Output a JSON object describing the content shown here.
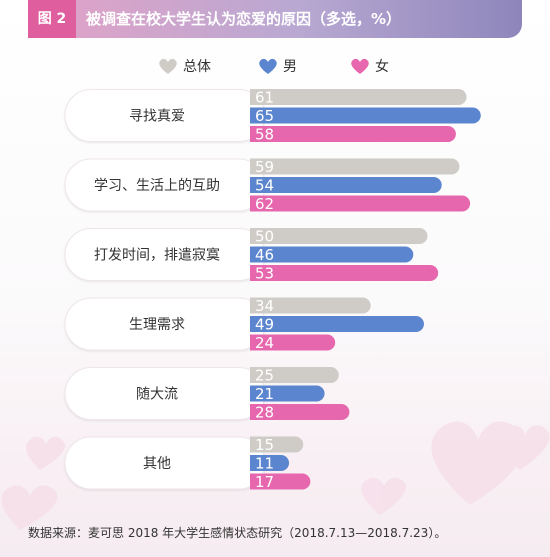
{
  "header": {
    "figure_label": "图 2",
    "title": "被调查在校大学生认为恋爱的原因（多选，%）"
  },
  "source_note": "数据来源：麦可思 2018 年大学生感情状态研究（2018.7.13—2018.7.23）。",
  "colors": {
    "total": "#cfccc7",
    "male": "#5b85ce",
    "female": "#e667ad"
  },
  "chart_data": {
    "type": "bar",
    "orientation": "horizontal",
    "categories": [
      "寻找真爱",
      "学习、生活上的互助",
      "打发时间，排遣寂寞",
      "生理需求",
      "随大流",
      "其他"
    ],
    "series": [
      {
        "name": "总体",
        "values": [
          61,
          59,
          50,
          34,
          25,
          15
        ]
      },
      {
        "name": "男",
        "values": [
          65,
          54,
          46,
          49,
          21,
          11
        ]
      },
      {
        "name": "女",
        "values": [
          58,
          62,
          53,
          24,
          28,
          17
        ]
      }
    ],
    "unit": "%",
    "legend_position": "top-center",
    "grid": false
  }
}
